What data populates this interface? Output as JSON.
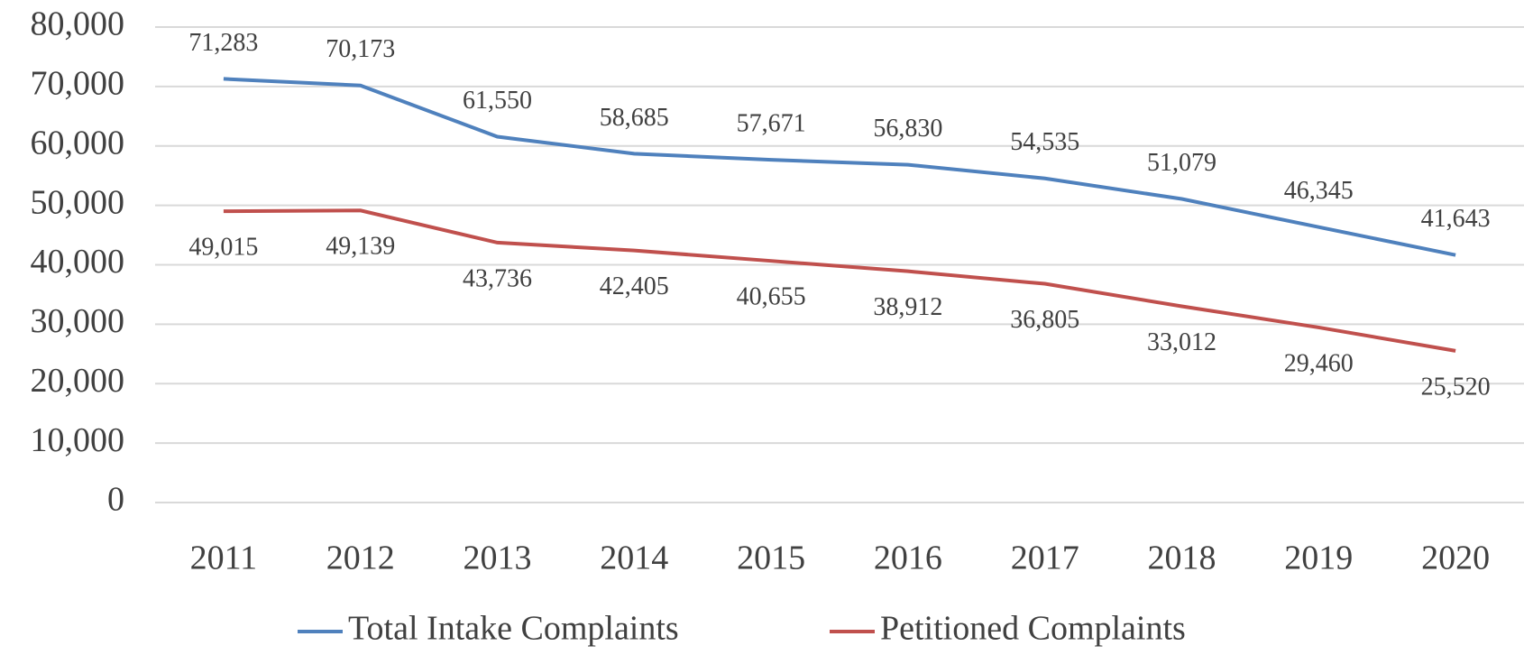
{
  "chart_data": {
    "type": "line",
    "categories": [
      "2011",
      "2012",
      "2013",
      "2014",
      "2015",
      "2016",
      "2017",
      "2018",
      "2019",
      "2020"
    ],
    "series": [
      {
        "name": "Total Intake Complaints",
        "color": "#4f81bd",
        "values": [
          71283,
          70173,
          61550,
          58685,
          57671,
          56830,
          54535,
          51079,
          46345,
          41643
        ],
        "value_labels": [
          "71,283",
          "70,173",
          "61,550",
          "58,685",
          "57,671",
          "56,830",
          "54,535",
          "51,079",
          "46,345",
          "41,643"
        ]
      },
      {
        "name": "Petitioned Complaints",
        "color": "#c0504d",
        "values": [
          49015,
          49139,
          43736,
          42405,
          40655,
          38912,
          36805,
          33012,
          29460,
          25520
        ],
        "value_labels": [
          "49,015",
          "49,139",
          "43,736",
          "42,405",
          "40,655",
          "38,912",
          "36,805",
          "33,012",
          "29,460",
          "25,520"
        ]
      }
    ],
    "ylim": [
      0,
      80000
    ],
    "yticks": [
      0,
      {
        "value": 10000,
        "label": "10,000"
      },
      {
        "value": 20000,
        "label": "20,000"
      },
      {
        "value": 30000,
        "label": "30,000"
      },
      {
        "value": 40000,
        "label": "40,000"
      },
      {
        "value": 50000,
        "label": "50,000"
      },
      {
        "value": 60000,
        "label": "60,000"
      },
      {
        "value": 70000,
        "label": "70,000"
      },
      {
        "value": 80000,
        "label": "80,000"
      }
    ],
    "grid": true,
    "legend": "bottom"
  }
}
